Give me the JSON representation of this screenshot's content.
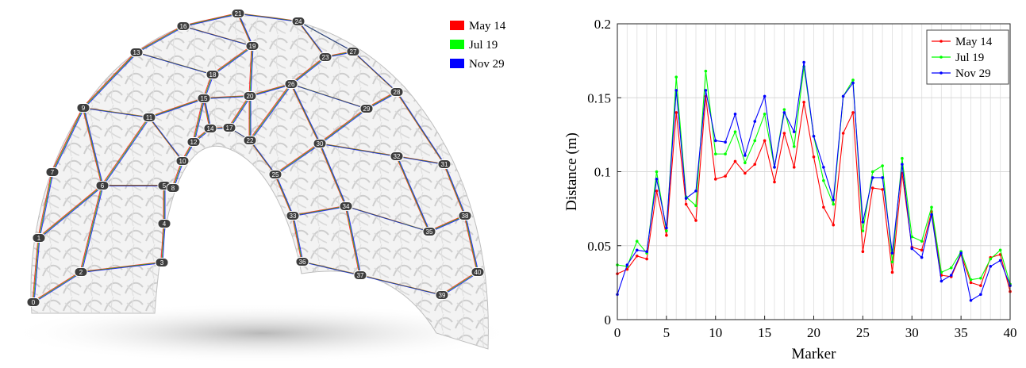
{
  "render": {
    "legend": [
      {
        "label": "May 14",
        "color": "#ff0000"
      },
      {
        "label": "Jul 19",
        "color": "#00ff00"
      },
      {
        "label": "Nov 29",
        "color": "#0000ff"
      }
    ],
    "markers": [
      "0",
      "1",
      "2",
      "3",
      "4",
      "5",
      "6",
      "7",
      "8",
      "9",
      "10",
      "11",
      "12",
      "13",
      "14",
      "15",
      "16",
      "17",
      "18",
      "19",
      "20",
      "21",
      "22",
      "23",
      "24",
      "25",
      "26",
      "27",
      "28",
      "29",
      "30",
      "31",
      "32",
      "33",
      "34",
      "35",
      "36",
      "37",
      "38",
      "39",
      "40"
    ]
  },
  "chart_data": {
    "type": "line",
    "title": "",
    "xlabel": "Marker",
    "ylabel": "Distance (m)",
    "xlim": [
      0,
      40
    ],
    "ylim": [
      0,
      0.2
    ],
    "xticks": [
      0,
      5,
      10,
      15,
      20,
      25,
      30,
      35,
      40
    ],
    "yticks": [
      0,
      0.05,
      0.1,
      0.15,
      0.2
    ],
    "ytick_labels": [
      "0",
      "0.05",
      "0.1",
      "0.15",
      "0.2"
    ],
    "grid": true,
    "legend_position": "top-right",
    "x": [
      0,
      1,
      2,
      3,
      4,
      5,
      6,
      7,
      8,
      9,
      10,
      11,
      12,
      13,
      14,
      15,
      16,
      17,
      18,
      19,
      20,
      21,
      22,
      23,
      24,
      25,
      26,
      27,
      28,
      29,
      30,
      31,
      32,
      33,
      34,
      35,
      36,
      37,
      38,
      39,
      40
    ],
    "series": [
      {
        "name": "May 14",
        "color": "#ff0000",
        "values": [
          0.031,
          0.034,
          0.043,
          0.041,
          0.087,
          0.057,
          0.14,
          0.078,
          0.067,
          0.151,
          0.095,
          0.097,
          0.107,
          0.099,
          0.105,
          0.121,
          0.093,
          0.126,
          0.103,
          0.147,
          0.11,
          0.076,
          0.064,
          0.126,
          0.14,
          0.046,
          0.089,
          0.088,
          0.032,
          0.099,
          0.049,
          0.047,
          0.073,
          0.03,
          0.029,
          0.044,
          0.025,
          0.023,
          0.042,
          0.044,
          0.019
        ]
      },
      {
        "name": "Jul 19",
        "color": "#00ff00",
        "values": [
          0.037,
          0.036,
          0.053,
          0.045,
          0.1,
          0.06,
          0.164,
          0.083,
          0.077,
          0.168,
          0.112,
          0.112,
          0.127,
          0.106,
          0.121,
          0.139,
          0.103,
          0.142,
          0.117,
          0.171,
          0.124,
          0.094,
          0.078,
          0.151,
          0.162,
          0.06,
          0.1,
          0.104,
          0.039,
          0.109,
          0.056,
          0.053,
          0.076,
          0.032,
          0.035,
          0.046,
          0.027,
          0.028,
          0.041,
          0.047,
          0.024
        ]
      },
      {
        "name": "Nov 29",
        "color": "#0000ff",
        "values": [
          0.017,
          0.037,
          0.047,
          0.046,
          0.095,
          0.062,
          0.155,
          0.082,
          0.087,
          0.155,
          0.121,
          0.12,
          0.139,
          0.111,
          0.134,
          0.151,
          0.103,
          0.14,
          0.127,
          0.174,
          0.124,
          0.103,
          0.081,
          0.151,
          0.16,
          0.066,
          0.096,
          0.096,
          0.045,
          0.105,
          0.048,
          0.042,
          0.071,
          0.026,
          0.03,
          0.045,
          0.013,
          0.017,
          0.036,
          0.04,
          0.023
        ]
      }
    ]
  }
}
